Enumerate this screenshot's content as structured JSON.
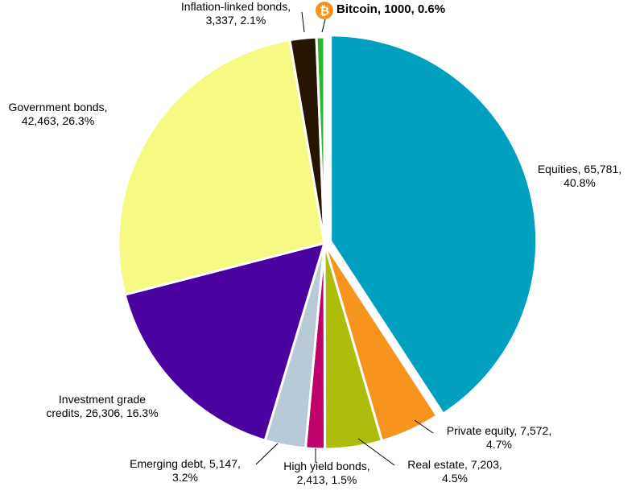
{
  "chart_data": {
    "type": "pie",
    "title": "",
    "unit": "",
    "start_angle_deg": 0,
    "direction": "clockwise",
    "slices": [
      {
        "name": "Equities",
        "value": 65781,
        "percent": 40.8,
        "color": "#00A0BE",
        "label_lines": [
          "Equities, 65,781,",
          "40.8%"
        ],
        "bold": false,
        "exploded": true
      },
      {
        "name": "Private equity",
        "value": 7572,
        "percent": 4.7,
        "color": "#F7941D",
        "label_lines": [
          "Private equity, 7,572,",
          "4.7%"
        ],
        "bold": false,
        "exploded": false
      },
      {
        "name": "Real estate",
        "value": 7203,
        "percent": 4.5,
        "color": "#AEBD0B",
        "label_lines": [
          "Real estate, 7,203,",
          "4.5%"
        ],
        "bold": false,
        "exploded": false
      },
      {
        "name": "High yield bonds",
        "value": 2413,
        "percent": 1.5,
        "color": "#C0006B",
        "label_lines": [
          "High yield bonds,",
          "2,413, 1.5%"
        ],
        "bold": false,
        "exploded": false
      },
      {
        "name": "Emerging debt",
        "value": 5147,
        "percent": 3.2,
        "color": "#B8C9D8",
        "label_lines": [
          "Emerging debt, 5,147,",
          "3.2%"
        ],
        "bold": false,
        "exploded": false
      },
      {
        "name": "Investment grade credits",
        "value": 26306,
        "percent": 16.3,
        "color": "#4B00A0",
        "label_lines": [
          "Investment grade",
          "credits, 26,306, 16.3%"
        ],
        "bold": false,
        "exploded": false
      },
      {
        "name": "Government bonds",
        "value": 42463,
        "percent": 26.3,
        "color": "#F7FA82",
        "label_lines": [
          "Government bonds,",
          "42,463, 26.3%"
        ],
        "bold": false,
        "exploded": false
      },
      {
        "name": "Inflation-linked bonds",
        "value": 3337,
        "percent": 2.1,
        "color": "#261500",
        "label_lines": [
          "Inflation-linked bonds,",
          "3,337, 2.1%"
        ],
        "bold": false,
        "exploded": false
      },
      {
        "name": "Bitcoin",
        "value": 1000,
        "percent": 0.6,
        "color": "#2DB52D",
        "label_lines": [
          "Bitcoin, 1000, 0.6%"
        ],
        "bold": true,
        "exploded": false
      }
    ]
  },
  "icons": {
    "bitcoin": {
      "name": "bitcoin-icon",
      "glyph": "₿",
      "color": "#F7931A"
    }
  }
}
